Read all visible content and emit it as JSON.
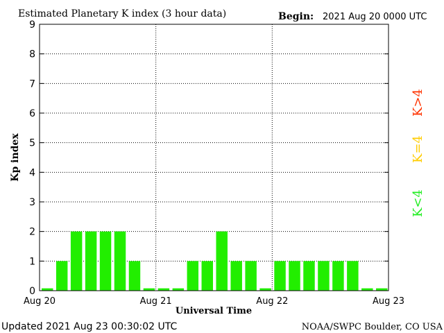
{
  "chart_data": {
    "type": "bar",
    "title": "Estimated Planetary K index (3 hour data)",
    "begin_label": "Begin:",
    "begin_value": "2021 Aug 20 0000 UTC",
    "xlabel": "Universal Time",
    "ylabel": "Kp index",
    "ylim": [
      0,
      9
    ],
    "yticks": [
      0,
      1,
      2,
      3,
      4,
      5,
      6,
      7,
      8,
      9
    ],
    "xtick_labels": [
      "Aug 20",
      "Aug 21",
      "Aug 22",
      "Aug 23"
    ],
    "interval_hours": 3,
    "grid": true,
    "values": [
      0,
      1,
      2,
      2,
      2,
      2,
      1,
      0,
      0,
      0,
      1,
      1,
      2,
      1,
      1,
      0,
      1,
      1,
      1,
      1,
      1,
      1,
      0,
      0
    ],
    "bar_color": "#22ee00",
    "legend": [
      {
        "label": "K<4",
        "color": "#22ee22"
      },
      {
        "label": "K=4",
        "color": "#ffcc00"
      },
      {
        "label": "K>4",
        "color": "#ff3300"
      }
    ]
  },
  "footer": {
    "updated": "Updated 2021 Aug 23 00:30:02 UTC",
    "source": "NOAA/SWPC Boulder, CO USA"
  }
}
